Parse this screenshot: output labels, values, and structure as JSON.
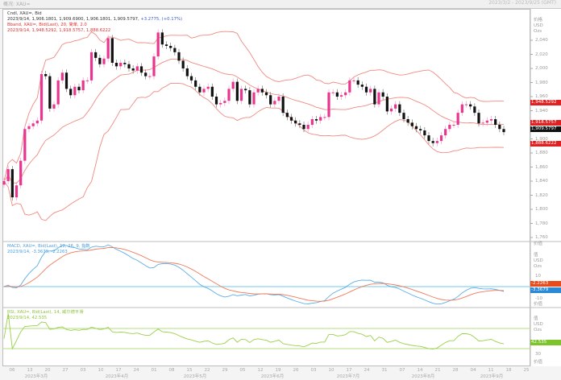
{
  "window": {
    "title": "概况: XAU=",
    "range": "2023/3/2 - 2023/9/25 (GMT)"
  },
  "legend": {
    "main_name": "Cndl, XAU=, Bid",
    "main_values_prefix": "2023/9/14, 1,906.1801, 1,909.6900, 1,906.1801, 1,909.5797,",
    "main_change": "+3.2775, (+0.17%)",
    "bband_name": "Bband, XAU=, Bid(Last), 20, 简单, 2.0",
    "bband_values": "2023/9/14, 1,948.5292, 1,918.5757, 1,888.6222",
    "macd_name": "MACD, XAU=, Bid(Last), 12, 26, 9, 指数",
    "macd_values": "2023/9/14, -3.3679, -2.2263",
    "rsi_name": "RSI, XAU=, Bid(Last), 14, 威尔德平滑",
    "rsi_values": "2023/9/14, 42.535"
  },
  "axis": {
    "main_header": [
      "价格",
      "USD",
      "Ozs"
    ],
    "sub_header": [
      "值",
      "USD",
      "Ozs"
    ],
    "footer": "价值",
    "price_ticks": [
      "2,040",
      "2,020",
      "2,000",
      "1,980",
      "1,960",
      "1,940",
      "1,900",
      "1,880",
      "1,860",
      "1,840",
      "1,820",
      "1,800",
      "1,780",
      "1,760"
    ],
    "macd_ticks": [
      "10",
      "-10"
    ],
    "rsi_ticks": [
      "30"
    ]
  },
  "markers": {
    "bb_upper": "1,948.5292",
    "bb_mid": "1,918.5757",
    "last": "1,909.5797",
    "bb_lower": "1,888.6222",
    "signal": "-2.2263",
    "macd": "-3.3679",
    "rsi": "42.535"
  },
  "dates": {
    "ticks": [
      "06",
      "13",
      "20",
      "27",
      "03",
      "10",
      "17",
      "24",
      "01",
      "08",
      "15",
      "22",
      "29",
      "05",
      "12",
      "19",
      "26",
      "03",
      "10",
      "17",
      "24",
      "31",
      "07",
      "14",
      "21",
      "28",
      "04",
      "11",
      "18",
      "25"
    ],
    "months": [
      "2023年3月",
      "2023年4月",
      "2023年5月",
      "2023年6月",
      "2023年7月",
      "2023年8月",
      "2023年9月"
    ]
  },
  "colors": {
    "up": "#e8358e",
    "down": "#111111",
    "bband": "#f08a80",
    "macd": "#5aaee8",
    "signal": "#f07a5a",
    "zero": "#8fd3f0",
    "rsi": "#9ad04a",
    "rsi_bounds": "#b5dc80"
  },
  "chart_data": [
    {
      "type": "candlestick",
      "title": "Cndl, XAU=, Bid",
      "ylabel": "USD/Ozs",
      "ylim": [
        1750,
        2060
      ],
      "x_range": [
        "2023/3/2",
        "2023/9/14"
      ],
      "close": [
        1840,
        1857,
        1817,
        1834,
        1869,
        1914,
        1918,
        1922,
        1926,
        1992,
        1989,
        1943,
        1949,
        1983,
        1994,
        1971,
        1962,
        1974,
        1969,
        1983,
        1983,
        2023,
        2015,
        2006,
        2014,
        2043,
        2008,
        2003,
        2008,
        2006,
        2000,
        1997,
        2003,
        1994,
        1989,
        1989,
        2017,
        2051,
        2034,
        2032,
        2029,
        2023,
        2011,
        2000,
        1989,
        1983,
        1974,
        1966,
        1971,
        1974,
        1960,
        1949,
        1951,
        1954,
        1971,
        1981,
        1954,
        1971,
        1969,
        1949,
        1966,
        1971,
        1966,
        1962,
        1949,
        1954,
        1960,
        1937,
        1931,
        1926,
        1922,
        1920,
        1914,
        1920,
        1928,
        1926,
        1931,
        1931,
        1966,
        1966,
        1960,
        1962,
        1966,
        1983,
        1983,
        1977,
        1974,
        1966,
        1971,
        1949,
        1966,
        1960,
        1939,
        1943,
        1949,
        1937,
        1928,
        1923,
        1918,
        1914,
        1912,
        1905,
        1897,
        1894,
        1897,
        1905,
        1914,
        1920,
        1920,
        1937,
        1949,
        1949,
        1946,
        1937,
        1922,
        1923,
        1926,
        1928,
        1920,
        1914,
        1909.58
      ],
      "bollinger": {
        "period": 20,
        "stdev": 2.0,
        "last": {
          "upper": 1948.5292,
          "mid": 1918.5757,
          "lower": 1888.6222
        }
      }
    },
    {
      "type": "line",
      "title": "MACD, XAU=, Bid(Last), 12, 26, 9",
      "ylim": [
        -20,
        40
      ],
      "series": [
        {
          "name": "MACD",
          "last": -3.3679
        },
        {
          "name": "Signal",
          "last": -2.2263
        }
      ]
    },
    {
      "type": "line",
      "title": "RSI, XAU=, Bid(Last), 14",
      "ylim": [
        10,
        110
      ],
      "bounds": [
        30,
        70
      ],
      "series": [
        {
          "name": "RSI",
          "last": 42.535
        }
      ]
    }
  ]
}
